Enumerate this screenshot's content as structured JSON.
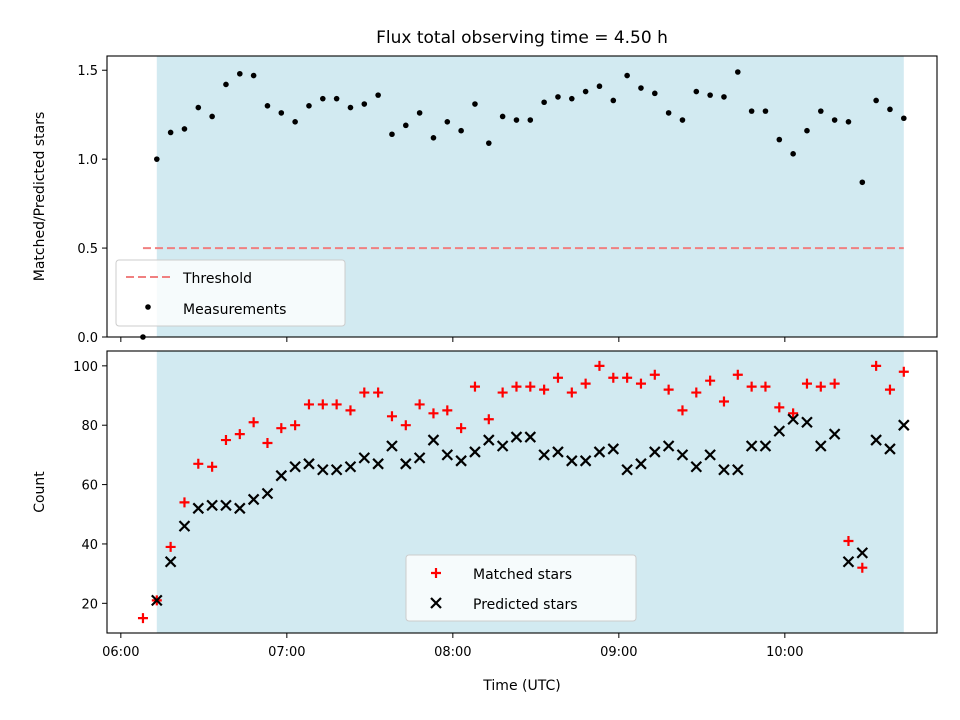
{
  "figure_title": "Flux total observing time = 4.50 h",
  "colors": {
    "shade": "#add8e6",
    "threshold": "#f08080",
    "measurements": "#000000",
    "matched": "#ff0000",
    "predicted": "#000000"
  },
  "chart_data": [
    {
      "type": "scatter",
      "panel": "top",
      "title": "Flux total observing time = 4.50 h",
      "ylabel": "Matched/Predicted stars",
      "xlabel": "",
      "xlim": [
        "05:55",
        "10:55"
      ],
      "ylim": [
        0,
        1.58
      ],
      "yticks": [
        "0.0",
        "0.5",
        "1.0",
        "1.5"
      ],
      "ytick_values": [
        0,
        0.5,
        1.0,
        1.5
      ],
      "xticks": [
        "06:00",
        "07:00",
        "08:00",
        "09:00",
        "10:00"
      ],
      "shaded_span": [
        "06:13",
        "10:43"
      ],
      "grid": false,
      "legend_position": "lower-left",
      "threshold": {
        "name": "Threshold",
        "y": 0.5,
        "x_start": "06:08",
        "x_end": "10:43"
      },
      "series": [
        {
          "name": "Measurements",
          "marker": "dot",
          "x": [
            "06:08",
            "06:13",
            "06:18",
            "06:23",
            "06:28",
            "06:33",
            "06:38",
            "06:43",
            "06:48",
            "06:53",
            "06:58",
            "07:03",
            "07:08",
            "07:13",
            "07:18",
            "07:23",
            "07:28",
            "07:33",
            "07:38",
            "07:43",
            "07:48",
            "07:53",
            "07:58",
            "08:03",
            "08:08",
            "08:13",
            "08:18",
            "08:23",
            "08:28",
            "08:33",
            "08:38",
            "08:43",
            "08:48",
            "08:53",
            "08:58",
            "09:03",
            "09:08",
            "09:13",
            "09:18",
            "09:23",
            "09:28",
            "09:33",
            "09:38",
            "09:43",
            "09:48",
            "09:53",
            "09:58",
            "10:03",
            "10:08",
            "10:13",
            "10:18",
            "10:23",
            "10:28",
            "10:33",
            "10:38",
            "10:43"
          ],
          "y": [
            0.0,
            1.0,
            1.15,
            1.17,
            1.29,
            1.24,
            1.42,
            1.48,
            1.47,
            1.3,
            1.26,
            1.21,
            1.3,
            1.34,
            1.34,
            1.29,
            1.31,
            1.36,
            1.14,
            1.19,
            1.26,
            1.12,
            1.21,
            1.16,
            1.31,
            1.09,
            1.24,
            1.22,
            1.22,
            1.32,
            1.35,
            1.34,
            1.38,
            1.41,
            1.33,
            1.47,
            1.4,
            1.37,
            1.26,
            1.22,
            1.38,
            1.36,
            1.35,
            1.49,
            1.27,
            1.27,
            1.11,
            1.03,
            1.16,
            1.27,
            1.22,
            1.21,
            0.87,
            1.33,
            1.28,
            1.23
          ]
        }
      ]
    },
    {
      "type": "scatter",
      "panel": "bottom",
      "title": "",
      "ylabel": "Count",
      "xlabel": "Time (UTC)",
      "xlim": [
        "05:55",
        "10:55"
      ],
      "ylim": [
        10,
        105
      ],
      "yticks": [
        "20",
        "40",
        "60",
        "80",
        "100"
      ],
      "ytick_values": [
        20,
        40,
        60,
        80,
        100
      ],
      "xticks": [
        "06:00",
        "07:00",
        "08:00",
        "09:00",
        "10:00"
      ],
      "shaded_span": [
        "06:13",
        "10:43"
      ],
      "grid": false,
      "legend_position": "lower-center",
      "series": [
        {
          "name": "Matched stars",
          "marker": "plus",
          "x": [
            "06:08",
            "06:13",
            "06:18",
            "06:23",
            "06:28",
            "06:33",
            "06:38",
            "06:43",
            "06:48",
            "06:53",
            "06:58",
            "07:03",
            "07:08",
            "07:13",
            "07:18",
            "07:23",
            "07:28",
            "07:33",
            "07:38",
            "07:43",
            "07:48",
            "07:53",
            "07:58",
            "08:03",
            "08:08",
            "08:13",
            "08:18",
            "08:23",
            "08:28",
            "08:33",
            "08:38",
            "08:43",
            "08:48",
            "08:53",
            "08:58",
            "09:03",
            "09:08",
            "09:13",
            "09:18",
            "09:23",
            "09:28",
            "09:33",
            "09:38",
            "09:43",
            "09:48",
            "09:53",
            "09:58",
            "10:03",
            "10:08",
            "10:13",
            "10:18",
            "10:23",
            "10:28",
            "10:33",
            "10:38",
            "10:43"
          ],
          "y": [
            15,
            21,
            39,
            54,
            67,
            66,
            75,
            77,
            81,
            74,
            79,
            80,
            87,
            87,
            87,
            85,
            91,
            91,
            83,
            80,
            87,
            84,
            85,
            79,
            93,
            82,
            91,
            93,
            93,
            92,
            96,
            91,
            94,
            100,
            96,
            96,
            94,
            97,
            92,
            85,
            91,
            95,
            88,
            97,
            93,
            93,
            86,
            84,
            94,
            93,
            94,
            41,
            32,
            100,
            92,
            98
          ]
        },
        {
          "name": "Predicted stars",
          "marker": "x",
          "x": [
            "06:13",
            "06:18",
            "06:23",
            "06:28",
            "06:33",
            "06:38",
            "06:43",
            "06:48",
            "06:53",
            "06:58",
            "07:03",
            "07:08",
            "07:13",
            "07:18",
            "07:23",
            "07:28",
            "07:33",
            "07:38",
            "07:43",
            "07:48",
            "07:53",
            "07:58",
            "08:03",
            "08:08",
            "08:13",
            "08:18",
            "08:23",
            "08:28",
            "08:33",
            "08:38",
            "08:43",
            "08:48",
            "08:53",
            "08:58",
            "09:03",
            "09:08",
            "09:13",
            "09:18",
            "09:23",
            "09:28",
            "09:33",
            "09:38",
            "09:43",
            "09:48",
            "09:53",
            "09:58",
            "10:03",
            "10:08",
            "10:13",
            "10:18",
            "10:23",
            "10:28",
            "10:33",
            "10:38",
            "10:43"
          ],
          "y": [
            21,
            34,
            46,
            52,
            53,
            53,
            52,
            55,
            57,
            63,
            66,
            67,
            65,
            65,
            66,
            69,
            67,
            73,
            67,
            69,
            75,
            70,
            68,
            71,
            75,
            73,
            76,
            76,
            70,
            71,
            68,
            68,
            71,
            72,
            65,
            67,
            71,
            73,
            70,
            66,
            70,
            65,
            65,
            73,
            73,
            78,
            82,
            81,
            73,
            77,
            34,
            37,
            75,
            72,
            80
          ]
        }
      ]
    }
  ]
}
